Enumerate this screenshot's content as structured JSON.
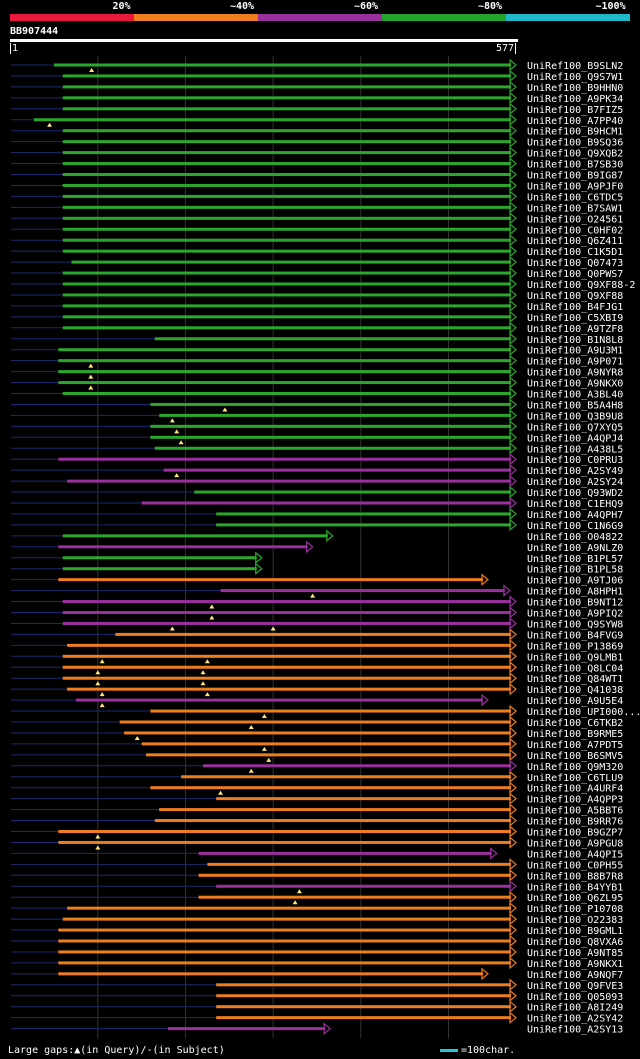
{
  "legend": {
    "segments": [
      {
        "label": "20%",
        "color": "#e8193c"
      },
      {
        "label": "~40%",
        "color": "#ee7d1e"
      },
      {
        "label": "~60%",
        "color": "#9b2f9e"
      },
      {
        "label": "~80%",
        "color": "#22a32b"
      },
      {
        "label": "~100%",
        "color": "#1fb8c8"
      }
    ]
  },
  "query": {
    "name": "BB907444",
    "start_label": "1",
    "end_label": "577",
    "length": 577
  },
  "colors": {
    "green": "#2ba82b",
    "purple": "#9b2f9e",
    "orange": "#ee7d1e",
    "navy": "#1a2a6e",
    "gap": "#ffe680",
    "grid": "#333333"
  },
  "grid_positions": [
    100,
    200,
    300,
    400,
    500
  ],
  "chart_data": {
    "type": "alignment",
    "query_length": 577,
    "hits": [
      {
        "name": "UniRef100_B9SLN2",
        "start": 50,
        "end": 577,
        "color": "green",
        "gaps": [
          93
        ]
      },
      {
        "name": "UniRef100_Q9S7W1",
        "start": 60,
        "end": 577,
        "color": "green",
        "gaps": []
      },
      {
        "name": "UniRef100_B9HHN0",
        "start": 60,
        "end": 577,
        "color": "green",
        "gaps": []
      },
      {
        "name": "UniRef100_A9PK34",
        "start": 60,
        "end": 577,
        "color": "green",
        "gaps": []
      },
      {
        "name": "UniRef100_B7FIZ5",
        "start": 60,
        "end": 577,
        "color": "green",
        "gaps": []
      },
      {
        "name": "UniRef100_A7PP40",
        "start": 27,
        "end": 577,
        "color": "green",
        "gaps": [
          45
        ]
      },
      {
        "name": "UniRef100_B9HCM1",
        "start": 60,
        "end": 577,
        "color": "green",
        "gaps": []
      },
      {
        "name": "UniRef100_B9SQ36",
        "start": 60,
        "end": 577,
        "color": "green",
        "gaps": []
      },
      {
        "name": "UniRef100_Q9XQB2",
        "start": 60,
        "end": 577,
        "color": "green",
        "gaps": []
      },
      {
        "name": "UniRef100_B7SB30",
        "start": 60,
        "end": 577,
        "color": "green",
        "gaps": []
      },
      {
        "name": "UniRef100_B9IG87",
        "start": 60,
        "end": 577,
        "color": "green",
        "gaps": []
      },
      {
        "name": "UniRef100_A9PJF0",
        "start": 60,
        "end": 577,
        "color": "green",
        "gaps": []
      },
      {
        "name": "UniRef100_C6TDC5",
        "start": 60,
        "end": 577,
        "color": "green",
        "gaps": []
      },
      {
        "name": "UniRef100_B7SAW1",
        "start": 60,
        "end": 577,
        "color": "green",
        "gaps": []
      },
      {
        "name": "UniRef100_O24561",
        "start": 60,
        "end": 577,
        "color": "green",
        "gaps": []
      },
      {
        "name": "UniRef100_C0HF02",
        "start": 60,
        "end": 577,
        "color": "green",
        "gaps": []
      },
      {
        "name": "UniRef100_Q6Z411",
        "start": 60,
        "end": 577,
        "color": "green",
        "gaps": []
      },
      {
        "name": "UniRef100_C1K5D1",
        "start": 60,
        "end": 577,
        "color": "green",
        "gaps": []
      },
      {
        "name": "UniRef100_Q07473",
        "start": 70,
        "end": 577,
        "color": "green",
        "gaps": []
      },
      {
        "name": "UniRef100_Q0PWS7",
        "start": 60,
        "end": 577,
        "color": "green",
        "gaps": []
      },
      {
        "name": "UniRef100_Q9XF88-2",
        "start": 60,
        "end": 577,
        "color": "green",
        "gaps": []
      },
      {
        "name": "UniRef100_Q9XF88",
        "start": 60,
        "end": 577,
        "color": "green",
        "gaps": []
      },
      {
        "name": "UniRef100_B4FJG1",
        "start": 60,
        "end": 577,
        "color": "green",
        "gaps": []
      },
      {
        "name": "UniRef100_C5XBI9",
        "start": 60,
        "end": 577,
        "color": "green",
        "gaps": []
      },
      {
        "name": "UniRef100_A9TZF8",
        "start": 60,
        "end": 577,
        "color": "green",
        "gaps": []
      },
      {
        "name": "UniRef100_B1N8L8",
        "start": 165,
        "end": 577,
        "color": "green",
        "gaps": []
      },
      {
        "name": "UniRef100_A9U3M1",
        "start": 55,
        "end": 577,
        "color": "green",
        "gaps": []
      },
      {
        "name": "UniRef100_A9P071",
        "start": 55,
        "end": 577,
        "color": "green",
        "gaps": [
          92
        ]
      },
      {
        "name": "UniRef100_A9NYR8",
        "start": 55,
        "end": 577,
        "color": "green",
        "gaps": [
          92
        ]
      },
      {
        "name": "UniRef100_A9NKX0",
        "start": 55,
        "end": 577,
        "color": "green",
        "gaps": [
          92
        ]
      },
      {
        "name": "UniRef100_A3BL40",
        "start": 60,
        "end": 577,
        "color": "green",
        "gaps": []
      },
      {
        "name": "UniRef100_B5A4H8",
        "start": 160,
        "end": 577,
        "color": "green",
        "gaps": [
          245
        ]
      },
      {
        "name": "UniRef100_Q3B9U8",
        "start": 170,
        "end": 577,
        "color": "green",
        "gaps": [
          185
        ]
      },
      {
        "name": "UniRef100_Q7XYQ5",
        "start": 160,
        "end": 577,
        "color": "green",
        "gaps": [
          190
        ]
      },
      {
        "name": "UniRef100_A4QPJ4",
        "start": 160,
        "end": 577,
        "color": "green",
        "gaps": [
          195
        ]
      },
      {
        "name": "UniRef100_A438L5",
        "start": 165,
        "end": 577,
        "color": "green",
        "gaps": []
      },
      {
        "name": "UniRef100_C0PRU3",
        "start": 55,
        "end": 577,
        "color": "purple",
        "gaps": []
      },
      {
        "name": "UniRef100_A2SY49",
        "start": 175,
        "end": 577,
        "color": "purple",
        "gaps": [
          190
        ]
      },
      {
        "name": "UniRef100_A2SY24",
        "start": 65,
        "end": 577,
        "color": "purple",
        "gaps": []
      },
      {
        "name": "UniRef100_Q93WD2",
        "start": 210,
        "end": 577,
        "color": "green",
        "gaps": []
      },
      {
        "name": "UniRef100_C1EHQ9",
        "start": 150,
        "end": 577,
        "color": "purple",
        "gaps": []
      },
      {
        "name": "UniRef100_A4QPH7",
        "start": 235,
        "end": 577,
        "color": "green",
        "gaps": []
      },
      {
        "name": "UniRef100_C1N6G9",
        "start": 235,
        "end": 577,
        "color": "green",
        "gaps": []
      },
      {
        "name": "UniRef100_O04822",
        "start": 60,
        "end": 368,
        "color": "green",
        "gaps": []
      },
      {
        "name": "UniRef100_A9NLZ0",
        "start": 55,
        "end": 345,
        "color": "purple",
        "gaps": []
      },
      {
        "name": "UniRef100_B1PL57",
        "start": 60,
        "end": 287,
        "color": "green",
        "gaps": []
      },
      {
        "name": "UniRef100_B1PL58",
        "start": 60,
        "end": 287,
        "color": "green",
        "gaps": []
      },
      {
        "name": "UniRef100_A9TJ06",
        "start": 55,
        "end": 545,
        "color": "orange",
        "gaps": []
      },
      {
        "name": "UniRef100_A8HPH1",
        "start": 240,
        "end": 570,
        "color": "purple",
        "gaps": [
          345
        ]
      },
      {
        "name": "UniRef100_B9NT12",
        "start": 60,
        "end": 577,
        "color": "purple",
        "gaps": [
          230
        ]
      },
      {
        "name": "UniRef100_A9PIQ2",
        "start": 60,
        "end": 577,
        "color": "purple",
        "gaps": [
          230
        ]
      },
      {
        "name": "UniRef100_Q9SYW8",
        "start": 60,
        "end": 577,
        "color": "purple",
        "gaps": [
          185,
          300
        ]
      },
      {
        "name": "UniRef100_B4FVG9",
        "start": 120,
        "end": 577,
        "color": "orange",
        "gaps": []
      },
      {
        "name": "UniRef100_P13869",
        "start": 65,
        "end": 577,
        "color": "orange",
        "gaps": []
      },
      {
        "name": "UniRef100_Q9LMB1",
        "start": 60,
        "end": 577,
        "color": "orange",
        "gaps": [
          105,
          225
        ]
      },
      {
        "name": "UniRef100_Q8LC04",
        "start": 60,
        "end": 577,
        "color": "orange",
        "gaps": [
          100,
          220
        ]
      },
      {
        "name": "UniRef100_Q84WT1",
        "start": 60,
        "end": 577,
        "color": "orange",
        "gaps": [
          100,
          220
        ]
      },
      {
        "name": "UniRef100_Q41038",
        "start": 65,
        "end": 577,
        "color": "orange",
        "gaps": [
          105,
          225
        ]
      },
      {
        "name": "UniRef100_A9U5E4",
        "start": 75,
        "end": 545,
        "color": "purple",
        "gaps": [
          105
        ]
      },
      {
        "name": "UniRef100_UPI000...",
        "start": 160,
        "end": 577,
        "color": "orange",
        "gaps": [
          290
        ]
      },
      {
        "name": "UniRef100_C6TKB2",
        "start": 125,
        "end": 577,
        "color": "orange",
        "gaps": [
          275
        ]
      },
      {
        "name": "UniRef100_B9RME5",
        "start": 130,
        "end": 577,
        "color": "orange",
        "gaps": [
          145
        ]
      },
      {
        "name": "UniRef100_A7PDT5",
        "start": 150,
        "end": 577,
        "color": "orange",
        "gaps": [
          290
        ]
      },
      {
        "name": "UniRef100_B6SMV5",
        "start": 155,
        "end": 577,
        "color": "orange",
        "gaps": [
          295
        ]
      },
      {
        "name": "UniRef100_Q9M320",
        "start": 220,
        "end": 577,
        "color": "purple",
        "gaps": [
          275
        ]
      },
      {
        "name": "UniRef100_C6TLU9",
        "start": 195,
        "end": 577,
        "color": "orange",
        "gaps": []
      },
      {
        "name": "UniRef100_A4URF4",
        "start": 160,
        "end": 577,
        "color": "orange",
        "gaps": [
          240
        ]
      },
      {
        "name": "UniRef100_A4QPP3",
        "start": 235,
        "end": 577,
        "color": "orange",
        "gaps": []
      },
      {
        "name": "UniRef100_A5BBT6",
        "start": 170,
        "end": 577,
        "color": "orange",
        "gaps": []
      },
      {
        "name": "UniRef100_B9RR76",
        "start": 165,
        "end": 577,
        "color": "orange",
        "gaps": []
      },
      {
        "name": "UniRef100_B9GZP7",
        "start": 55,
        "end": 577,
        "color": "orange",
        "gaps": [
          100
        ]
      },
      {
        "name": "UniRef100_A9PGU8",
        "start": 55,
        "end": 577,
        "color": "orange",
        "gaps": [
          100
        ]
      },
      {
        "name": "UniRef100_A4QPI5",
        "start": 215,
        "end": 555,
        "color": "purple",
        "gaps": []
      },
      {
        "name": "UniRef100_C0PH55",
        "start": 225,
        "end": 577,
        "color": "orange",
        "gaps": []
      },
      {
        "name": "UniRef100_B8B7R8",
        "start": 215,
        "end": 577,
        "color": "orange",
        "gaps": []
      },
      {
        "name": "UniRef100_B4YYB1",
        "start": 235,
        "end": 577,
        "color": "purple",
        "gaps": [
          330
        ]
      },
      {
        "name": "UniRef100_Q6ZL95",
        "start": 215,
        "end": 577,
        "color": "orange",
        "gaps": [
          325
        ]
      },
      {
        "name": "UniRef100_P10708",
        "start": 65,
        "end": 577,
        "color": "orange",
        "gaps": []
      },
      {
        "name": "UniRef100_O22383",
        "start": 60,
        "end": 577,
        "color": "orange",
        "gaps": []
      },
      {
        "name": "UniRef100_B9GML1",
        "start": 55,
        "end": 577,
        "color": "orange",
        "gaps": []
      },
      {
        "name": "UniRef100_Q8VXA6",
        "start": 55,
        "end": 577,
        "color": "orange",
        "gaps": []
      },
      {
        "name": "UniRef100_A9NT85",
        "start": 55,
        "end": 577,
        "color": "orange",
        "gaps": []
      },
      {
        "name": "UniRef100_A9NKX1",
        "start": 55,
        "end": 577,
        "color": "orange",
        "gaps": []
      },
      {
        "name": "UniRef100_A9NQF7",
        "start": 55,
        "end": 545,
        "color": "orange",
        "gaps": []
      },
      {
        "name": "UniRef100_Q9FVE3",
        "start": 235,
        "end": 577,
        "color": "orange",
        "gaps": []
      },
      {
        "name": "UniRef100_Q05093",
        "start": 235,
        "end": 577,
        "color": "orange",
        "gaps": []
      },
      {
        "name": "UniRef100_A8I249",
        "start": 235,
        "end": 577,
        "color": "orange",
        "gaps": []
      },
      {
        "name": "UniRef100_A2SY42",
        "start": 235,
        "end": 577,
        "color": "orange",
        "gaps": []
      },
      {
        "name": "UniRef100_A2SY13",
        "start": 180,
        "end": 365,
        "color": "purple",
        "gaps": []
      }
    ]
  },
  "footer": {
    "gaps_text": "Large gaps:▲(in Query)/-(in Subject)",
    "scale_text": "=100char."
  }
}
